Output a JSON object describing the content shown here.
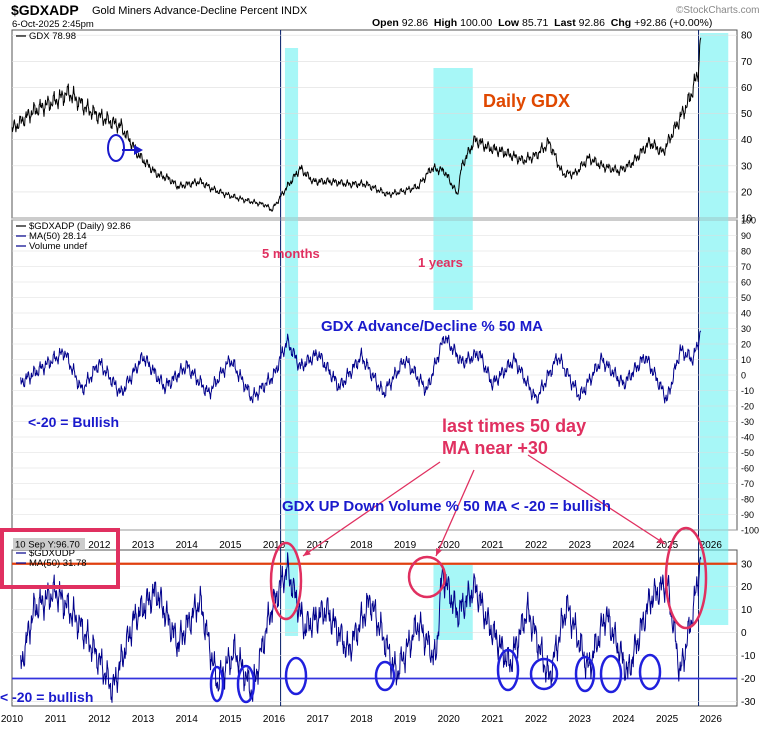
{
  "header": {
    "symbol": "$GDXADP",
    "name": "Gold Miners Advance-Decline Percent",
    "exchange": "INDX",
    "date": "6-Oct-2025 2:45pm",
    "open_label": "Open",
    "open": "92.86",
    "high_label": "High",
    "high": "100.00",
    "low_label": "Low",
    "low": "85.71",
    "last_label": "Last",
    "last": "92.86",
    "chg_label": "Chg",
    "chg": "+92.86 (+0.00%)",
    "brand": "©StockCharts.com"
  },
  "annotations": {
    "daily_gdx": "Daily GDX",
    "five_months": "5 months",
    "one_years": "1 years",
    "ad_title": "GDX Advance/Decline % 50 MA",
    "bullish_ad": "<-20 = Bullish",
    "last_times_1": "last times 50 day",
    "last_times_2": "MA near +30",
    "updown_title": "GDX UP Down Volume % 50 MA < -20 = bullish",
    "bullish_ud": "< -20 = bullish"
  },
  "colors": {
    "price": "#000000",
    "ma_line": "#00008b",
    "highlight": "#5ff0f0",
    "annotation_red": "#e03060",
    "daily_gdx_orange": "#e04800",
    "annotation_blue": "#1a1acc",
    "level_orange": "#e04010",
    "level_blue": "#3333dd"
  },
  "chart_data": [
    {
      "type": "line",
      "panel": "price",
      "legend": "GDX 78.98",
      "series": [
        {
          "name": "GDX",
          "x": [
            2010.0,
            2010.5,
            2011.0,
            2011.3,
            2011.7,
            2012.0,
            2012.5,
            2012.9,
            2013.3,
            2013.6,
            2013.8,
            2014.3,
            2014.6,
            2014.9,
            2015.3,
            2015.8,
            2015.95,
            2016.3,
            2016.6,
            2016.9,
            2017.3,
            2017.7,
            2018.1,
            2018.6,
            2018.9,
            2019.3,
            2019.6,
            2019.9,
            2020.2,
            2020.3,
            2020.6,
            2020.9,
            2021.3,
            2021.7,
            2022.0,
            2022.3,
            2022.6,
            2022.9,
            2023.2,
            2023.5,
            2023.9,
            2024.2,
            2024.6,
            2024.9,
            2025.2,
            2025.5,
            2025.7,
            2025.77
          ],
          "y": [
            44,
            51,
            55,
            58,
            52,
            49,
            45,
            34,
            27,
            25,
            22,
            24,
            21,
            19,
            17,
            15,
            13,
            22,
            29,
            24,
            24,
            23,
            23,
            19,
            20,
            22,
            29,
            28,
            19,
            30,
            40,
            37,
            35,
            32,
            34,
            39,
            27,
            27,
            33,
            30,
            28,
            31,
            39,
            35,
            45,
            55,
            65,
            79
          ]
        }
      ],
      "ylim": [
        10,
        82
      ],
      "y_ticks": [
        10,
        20,
        30,
        40,
        50,
        60,
        70,
        80
      ]
    },
    {
      "type": "line",
      "panel": "advance_decline",
      "legend": [
        "$GDXADP (Daily) 92.86",
        "MA(50) 28.14",
        "Volume undef"
      ],
      "series": [
        {
          "name": "MA(50)",
          "x": [
            2010.2,
            2010.7,
            2011.2,
            2011.6,
            2012.0,
            2012.5,
            2013.0,
            2013.5,
            2014.0,
            2014.5,
            2015.0,
            2015.5,
            2016.0,
            2016.3,
            2016.6,
            2017.0,
            2017.5,
            2018.0,
            2018.5,
            2019.0,
            2019.5,
            2019.9,
            2020.3,
            2020.7,
            2021.0,
            2021.5,
            2022.0,
            2022.5,
            2023.0,
            2023.5,
            2024.0,
            2024.5,
            2025.0,
            2025.3,
            2025.6,
            2025.77
          ],
          "y": [
            -5,
            5,
            15,
            -10,
            8,
            -12,
            12,
            -8,
            6,
            -12,
            10,
            -15,
            0,
            22,
            5,
            14,
            -8,
            12,
            -12,
            10,
            -10,
            25,
            8,
            14,
            -6,
            10,
            -16,
            12,
            -14,
            10,
            -6,
            12,
            -16,
            16,
            10,
            28
          ]
        }
      ],
      "ylim": [
        -100,
        100
      ],
      "y_ticks": [
        -100,
        -90,
        -80,
        -70,
        -60,
        -50,
        -40,
        -30,
        -20,
        -10,
        0,
        10,
        20,
        30,
        40,
        50,
        60,
        70,
        80,
        90,
        100
      ]
    },
    {
      "type": "line",
      "panel": "updown_volume",
      "legend": [
        "$GDXUDP",
        "MA(50) 31.78"
      ],
      "crosshair": "10 Sep Y:96.70",
      "series": [
        {
          "name": "MA(50)",
          "x": [
            2010.2,
            2010.5,
            2011.0,
            2011.5,
            2012.0,
            2012.3,
            2012.8,
            2013.3,
            2013.8,
            2014.3,
            2014.7,
            2015.1,
            2015.5,
            2015.9,
            2016.3,
            2016.7,
            2017.2,
            2017.7,
            2018.2,
            2018.8,
            2019.3,
            2019.7,
            2019.85,
            2020.2,
            2020.6,
            2020.9,
            2021.4,
            2021.8,
            2022.3,
            2022.7,
            2023.2,
            2023.6,
            2024.1,
            2024.6,
            2025.0,
            2025.3,
            2025.6,
            2025.77
          ],
          "y": [
            -15,
            10,
            18,
            5,
            -12,
            -25,
            6,
            18,
            -5,
            14,
            -22,
            -8,
            -26,
            8,
            28,
            2,
            10,
            -8,
            14,
            -18,
            4,
            -12,
            26,
            8,
            20,
            4,
            -14,
            10,
            -20,
            12,
            -16,
            8,
            -18,
            14,
            22,
            -18,
            10,
            32
          ]
        }
      ],
      "reference_lines": [
        30,
        -20
      ],
      "ylim": [
        -32,
        36
      ],
      "y_ticks": [
        -30,
        -20,
        -10,
        0,
        10,
        20,
        30
      ]
    }
  ],
  "x_axis": {
    "years": [
      "2010",
      "2011",
      "2012",
      "2013",
      "2014",
      "2015",
      "2016",
      "2017",
      "2018",
      "2019",
      "2020",
      "2021",
      "2022",
      "2023",
      "2024",
      "2025",
      "2026"
    ],
    "upper_years": [
      "2012",
      "2013",
      "2014",
      "2015",
      "2016",
      "2017",
      "2018",
      "2019",
      "2020",
      "2021",
      "2022",
      "2023",
      "2024",
      "2025",
      "2026"
    ]
  }
}
